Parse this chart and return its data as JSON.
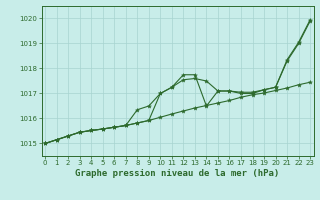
{
  "title": "Graphe pression niveau de la mer (hPa)",
  "xlabel_hours": [
    0,
    1,
    2,
    3,
    4,
    5,
    6,
    7,
    8,
    9,
    10,
    11,
    12,
    13,
    14,
    15,
    16,
    17,
    18,
    19,
    20,
    21,
    22,
    23
  ],
  "line1": [
    1015.0,
    1015.15,
    1015.3,
    1015.45,
    1015.52,
    1015.58,
    1015.65,
    1015.72,
    1015.82,
    1015.92,
    1016.05,
    1016.18,
    1016.3,
    1016.42,
    1016.52,
    1016.62,
    1016.72,
    1016.85,
    1016.95,
    1017.02,
    1017.12,
    1017.22,
    1017.35,
    1017.45
  ],
  "line2": [
    1015.0,
    1015.15,
    1015.3,
    1015.45,
    1015.52,
    1015.58,
    1015.65,
    1015.72,
    1015.82,
    1015.92,
    1017.0,
    1017.25,
    1017.75,
    1017.75,
    1016.5,
    1017.1,
    1017.1,
    1017.0,
    1017.0,
    1017.15,
    1017.25,
    1018.3,
    1019.0,
    1019.9
  ],
  "line3": [
    1015.0,
    1015.15,
    1015.3,
    1015.45,
    1015.52,
    1015.58,
    1015.65,
    1015.72,
    1016.35,
    1016.5,
    1017.0,
    1017.25,
    1017.55,
    1017.6,
    1017.5,
    1017.1,
    1017.1,
    1017.05,
    1017.05,
    1017.15,
    1017.25,
    1018.35,
    1019.05,
    1019.95
  ],
  "line_color": "#2d6a2d",
  "bg_color": "#c8ede9",
  "grid_color": "#a8d4d0",
  "ylim": [
    1014.5,
    1020.5
  ],
  "yticks": [
    1015,
    1016,
    1017,
    1018,
    1019,
    1020
  ],
  "title_fontsize": 7.0,
  "tick_fontsize": 5.0,
  "xlabel_fontsize": 6.5
}
